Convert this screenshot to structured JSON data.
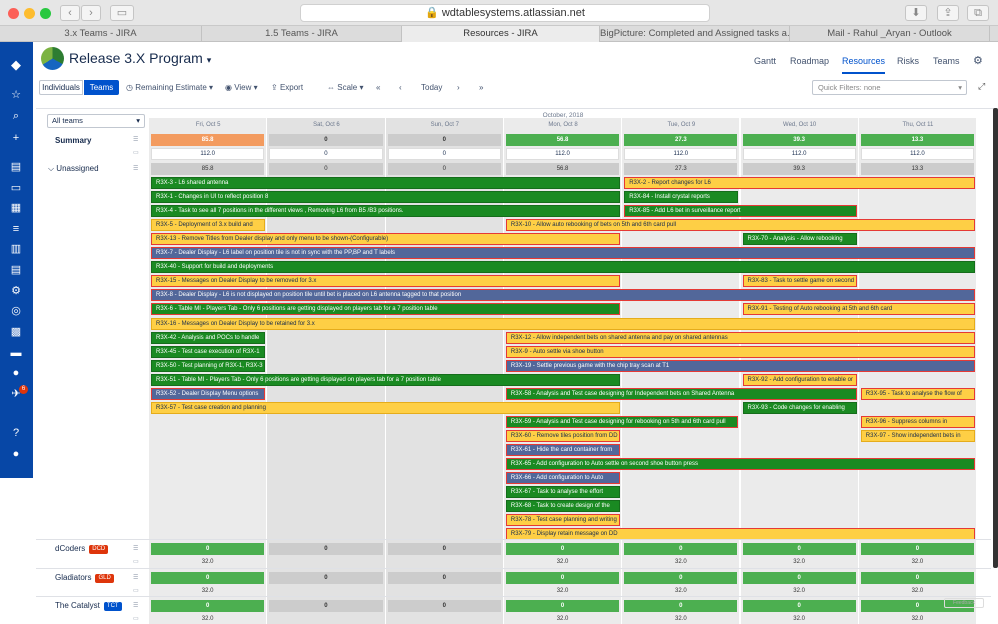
{
  "browser": {
    "url": "wdtablesystems.atlassian.net",
    "tabs": [
      "3.x Teams - JIRA",
      "1.5 Teams - JIRA",
      "Resources - JIRA",
      "BigPicture: Completed and Assigned tasks a...",
      "Mail - Rahul _Aryan - Outlook"
    ],
    "active_tab": 2
  },
  "header": {
    "title": "Release 3.X Program",
    "nav": [
      "Gantt",
      "Roadmap",
      "Resources",
      "Risks",
      "Teams"
    ],
    "active_nav": "Resources"
  },
  "toolbar": {
    "individuals": "Individuals",
    "teams": "Teams",
    "remaining": "Remaining Estimate",
    "view": "View",
    "export": "Export",
    "scale": "Scale",
    "today": "Today",
    "quick_filters": "Quick Filters: none"
  },
  "filter": {
    "selected": "All teams"
  },
  "timeline": {
    "month": "October, 2018",
    "days": [
      "Fri, Oct 5",
      "Sat, Oct 6",
      "Sun, Oct 7",
      "Mon, Oct 8",
      "Tue, Oct 9",
      "Wed, Oct 10",
      "Thu, Oct 11"
    ]
  },
  "summary": {
    "label": "Summary",
    "top": [
      "85.8",
      "0",
      "0",
      "56.8",
      "27.3",
      "39.3",
      "13.3"
    ],
    "cap": [
      "112.0",
      "0",
      "0",
      "112.0",
      "112.0",
      "112.0",
      "112.0"
    ]
  },
  "unassigned": {
    "label": "Unassigned",
    "values": [
      "85.8",
      "0",
      "0",
      "56.8",
      "27.3",
      "39.3",
      "13.3"
    ]
  },
  "bars": [
    {
      "t": "R3X-3 - L6 shared antenna",
      "c": "g",
      "d0": 0,
      "d1": 4,
      "r": 0
    },
    {
      "t": "R3X-2 - Report changes for L6",
      "c": "y",
      "d0": 4,
      "d1": 7,
      "r": 0,
      "red": true
    },
    {
      "t": "R3X-1 - Changes in UI to reflect position 8",
      "c": "g",
      "d0": 0,
      "d1": 4,
      "r": 1
    },
    {
      "t": "R3X-84 - Install crystal reports",
      "c": "g",
      "d0": 4,
      "d1": 5,
      "r": 1
    },
    {
      "t": "R3X-4 - Task to see all 7 positions in the different views , Removing L6 from B5 /B3 positions.",
      "c": "g",
      "d0": 0,
      "d1": 4,
      "r": 2
    },
    {
      "t": "R3X-85 - Add L6 bet in surveillance report",
      "c": "g",
      "d0": 4,
      "d1": 6,
      "r": 2,
      "red": true
    },
    {
      "t": "R3X-5 - Deployment of 3.x build and",
      "c": "y",
      "d0": 0,
      "d1": 1,
      "r": 3
    },
    {
      "t": "R3X-10 - Allow auto rebooking of bets on 5th and 6th card pull",
      "c": "y",
      "d0": 3,
      "d1": 7,
      "r": 3,
      "red": true
    },
    {
      "t": "R3X-13 - Remove Titles from Dealer display and only menu to be shown-(Configurable)",
      "c": "y",
      "d0": 0,
      "d1": 4,
      "r": 4,
      "red": true
    },
    {
      "t": "R3X-70 - Analysis - Allow rebooking",
      "c": "g",
      "d0": 5,
      "d1": 6,
      "r": 4
    },
    {
      "t": "R3X-7 - Dealer Display - L6 label on position tile is not in sync with the PP,BP and T labels",
      "c": "b",
      "d0": 0,
      "d1": 7,
      "r": 5,
      "red": true
    },
    {
      "t": "R3X-40 - Support for build and deployments",
      "c": "g",
      "d0": 0,
      "d1": 7,
      "r": 6
    },
    {
      "t": "R3X-15 - Messages on Dealer Display to be removed for 3.x",
      "c": "y",
      "d0": 0,
      "d1": 4,
      "r": 7,
      "red": true
    },
    {
      "t": "R3X-83 - Task to settle game on second",
      "c": "y",
      "d0": 5,
      "d1": 6,
      "r": 7,
      "red": true
    },
    {
      "t": "R3X-8 - Dealer Display - L6 is not displayed on position tile until bet is placed on L6 antenna tagged to that position",
      "c": "b",
      "d0": 0,
      "d1": 7,
      "r": 8,
      "red": true
    },
    {
      "t": "R3X-6 - Table MI - Players Tab - Only 6 positions are getting displayed on players tab for a 7 position table",
      "c": "g",
      "d0": 0,
      "d1": 4,
      "r": 9,
      "red": true
    },
    {
      "t": "R3X-91 - Testing of Auto rebooking at 5th and 6th card",
      "c": "y",
      "d0": 5,
      "d1": 7,
      "r": 9,
      "red": true
    },
    {
      "t": "R3X-16 - Messages on Dealer Display to be retained for 3.x",
      "c": "y",
      "d0": 0,
      "d1": 7,
      "r": 10
    },
    {
      "t": "R3X-42 - Analysis and POCs to handle",
      "c": "g",
      "d0": 0,
      "d1": 1,
      "r": 11
    },
    {
      "t": "R3X-12 - Allow independent bets on shared antenna and pay on shared antennas",
      "c": "y",
      "d0": 3,
      "d1": 7,
      "r": 11,
      "red": true
    },
    {
      "t": "R3X-45 - Test case execution of R3X-1",
      "c": "g",
      "d0": 0,
      "d1": 1,
      "r": 12
    },
    {
      "t": "R3X-9 - Auto settle via shoe button",
      "c": "y",
      "d0": 3,
      "d1": 7,
      "r": 12,
      "red": true
    },
    {
      "t": "R3X-50 - Test planning of R3X-1, R3X-3",
      "c": "g",
      "d0": 0,
      "d1": 1,
      "r": 13
    },
    {
      "t": "R3X-19 - Settle previous game with the chip tray scan at T1",
      "c": "b",
      "d0": 3,
      "d1": 7,
      "r": 13,
      "red": true
    },
    {
      "t": "R3X-51 - Table MI - Players Tab - Only 6 positions are getting displayed on players tab for a 7 position table",
      "c": "g",
      "d0": 0,
      "d1": 4,
      "r": 14
    },
    {
      "t": "R3X-92 - Add configuration to enable or",
      "c": "y",
      "d0": 5,
      "d1": 6,
      "r": 14,
      "red": true
    },
    {
      "t": "R3X-52 - Dealer Display Menu options",
      "c": "b",
      "d0": 0,
      "d1": 1,
      "r": 15,
      "red": true
    },
    {
      "t": "R3X-58 - Analysis and Test case designing for Independent bets on Shared Antenna",
      "c": "g",
      "d0": 3,
      "d1": 6,
      "r": 15,
      "red": true
    },
    {
      "t": "R3X-95 - Task to analyse the flow of",
      "c": "y",
      "d0": 6,
      "d1": 7,
      "r": 15,
      "red": true
    },
    {
      "t": "R3X-57 - Test case creation and planning",
      "c": "y",
      "d0": 0,
      "d1": 4,
      "r": 16
    },
    {
      "t": "R3X-93 - Code changes for enabling",
      "c": "g",
      "d0": 5,
      "d1": 6,
      "r": 16
    },
    {
      "t": "R3X-59 - Analysis and Test case designing for rebooking on 5th and 6th card pull",
      "c": "g",
      "d0": 3,
      "d1": 5,
      "r": 17,
      "red": true
    },
    {
      "t": "R3X-96 - Suppress columns in",
      "c": "y",
      "d0": 6,
      "d1": 7,
      "r": 17,
      "red": true
    },
    {
      "t": "R3X-60 - Remove tiles position from DD",
      "c": "y",
      "d0": 3,
      "d1": 4,
      "r": 18,
      "red": true
    },
    {
      "t": "R3X-97 - Show independent bets in",
      "c": "y",
      "d0": 6,
      "d1": 7,
      "r": 18
    },
    {
      "t": "R3X-61 - Hide the card container from",
      "c": "b",
      "d0": 3,
      "d1": 4,
      "r": 19,
      "red": true
    },
    {
      "t": "R3X-65 - Add configuration to Auto settle on second shoe button press",
      "c": "g",
      "d0": 3,
      "d1": 7,
      "r": 20,
      "red": true
    },
    {
      "t": "R3X-66 - Add configuration to Auto",
      "c": "b",
      "d0": 3,
      "d1": 4,
      "r": 21,
      "red": true
    },
    {
      "t": "R3X-67 - Task to analyse the effort",
      "c": "g",
      "d0": 3,
      "d1": 4,
      "r": 22
    },
    {
      "t": "R3X-68 - Task to create design of the",
      "c": "g",
      "d0": 3,
      "d1": 4,
      "r": 23
    },
    {
      "t": "R3X-78 - Test case planning and writing",
      "c": "y",
      "d0": 3,
      "d1": 4,
      "r": 24,
      "red": true
    },
    {
      "t": "R3X-79 - Display retain message on DD",
      "c": "y",
      "d0": 3,
      "d1": 7,
      "r": 25,
      "red": true
    }
  ],
  "teams": [
    {
      "name": "dCoders",
      "badge": "DCD",
      "badge_color": "#de350b",
      "top": [
        "0",
        "0",
        "0",
        "0",
        "0",
        "0",
        "0"
      ],
      "cap": [
        "32.0",
        "",
        "",
        "32.0",
        "32.0",
        "32.0",
        "32.0"
      ]
    },
    {
      "name": "Gladiators",
      "badge": "GLD",
      "badge_color": "#de350b",
      "top": [
        "0",
        "0",
        "0",
        "0",
        "0",
        "0",
        "0"
      ],
      "cap": [
        "32.0",
        "",
        "",
        "32.0",
        "32.0",
        "32.0",
        "32.0"
      ]
    },
    {
      "name": "The Catalyst",
      "badge": "TCT",
      "badge_color": "#0052cc",
      "top": [
        "0",
        "0",
        "0",
        "0",
        "0",
        "0",
        "0"
      ],
      "cap": [
        "32.0",
        "",
        "",
        "32.0",
        "32.0",
        "32.0",
        "32.0"
      ]
    }
  ],
  "sidebar_badge": "6",
  "colors": {
    "green": "#1a8a22",
    "yellow": "#fecf45",
    "blue": "#52679a",
    "red": "#e53935",
    "orange": "#f39b5f"
  }
}
